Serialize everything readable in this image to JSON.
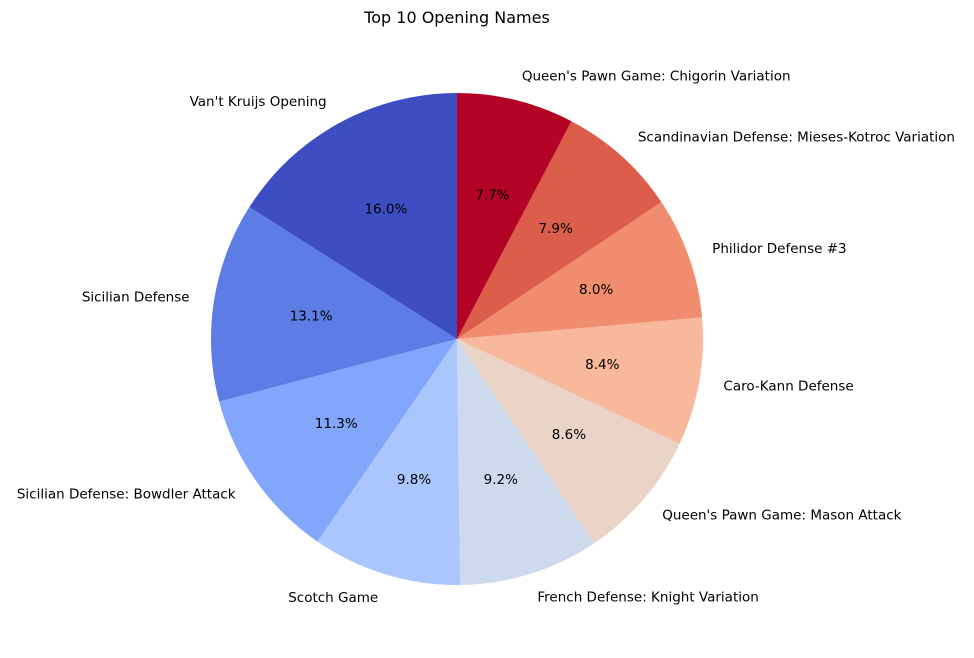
{
  "chart_data": {
    "type": "pie",
    "title": "Top 10 Opening Names",
    "start_angle_deg": 90,
    "direction": "counterclockwise",
    "slices": [
      {
        "label": "Van't Kruijs Opening",
        "pct": 16.0,
        "pct_label": "16.0%",
        "color": "#3c4ec2"
      },
      {
        "label": "Sicilian Defense",
        "pct": 13.1,
        "pct_label": "13.1%",
        "color": "#5d7ce6"
      },
      {
        "label": "Sicilian Defense: Bowdler Attack",
        "pct": 11.3,
        "pct_label": "11.3%",
        "color": "#82a6fb"
      },
      {
        "label": "Scotch Game",
        "pct": 9.8,
        "pct_label": "9.8%",
        "color": "#aac7fd"
      },
      {
        "label": "French Defense: Knight Variation",
        "pct": 9.2,
        "pct_label": "9.2%",
        "color": "#cdd9ec"
      },
      {
        "label": "Queen's Pawn Game: Mason Attack",
        "pct": 8.6,
        "pct_label": "8.6%",
        "color": "#ead4c8"
      },
      {
        "label": "Caro-Kann Defense",
        "pct": 8.4,
        "pct_label": "8.4%",
        "color": "#f7b89c"
      },
      {
        "label": "Philidor Defense #3",
        "pct": 8.0,
        "pct_label": "8.0%",
        "color": "#f18d6f"
      },
      {
        "label": "Scandinavian Defense: Mieses-Kotroc Variation",
        "pct": 7.9,
        "pct_label": "7.9%",
        "color": "#dc5d4a"
      },
      {
        "label": "Queen's Pawn Game: Chigorin Variation",
        "pct": 7.7,
        "pct_label": "7.7%",
        "color": "#b40426"
      }
    ]
  }
}
